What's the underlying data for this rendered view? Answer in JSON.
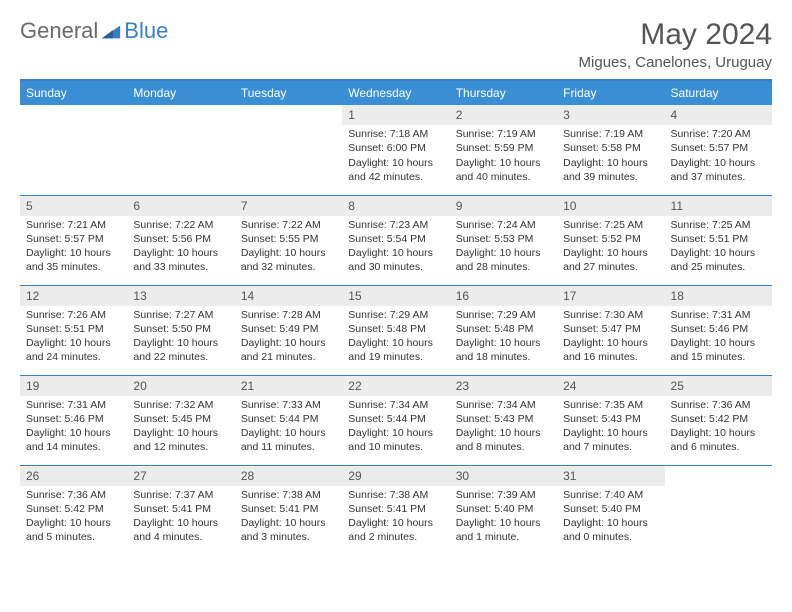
{
  "logo": {
    "text1": "General",
    "text2": "Blue"
  },
  "title": "May 2024",
  "location": "Migues, Canelones, Uruguay",
  "colors": {
    "accent": "#3a7fc4",
    "header_bg": "#3a8fd4",
    "header_fg": "#ffffff",
    "daynum_bg": "#ececec",
    "text": "#333333",
    "muted": "#555555"
  },
  "daysOfWeek": [
    "Sunday",
    "Monday",
    "Tuesday",
    "Wednesday",
    "Thursday",
    "Friday",
    "Saturday"
  ],
  "weeks": [
    [
      null,
      null,
      null,
      {
        "n": "1",
        "sr": "Sunrise: 7:18 AM",
        "ss": "Sunset: 6:00 PM",
        "dl": "Daylight: 10 hours and 42 minutes."
      },
      {
        "n": "2",
        "sr": "Sunrise: 7:19 AM",
        "ss": "Sunset: 5:59 PM",
        "dl": "Daylight: 10 hours and 40 minutes."
      },
      {
        "n": "3",
        "sr": "Sunrise: 7:19 AM",
        "ss": "Sunset: 5:58 PM",
        "dl": "Daylight: 10 hours and 39 minutes."
      },
      {
        "n": "4",
        "sr": "Sunrise: 7:20 AM",
        "ss": "Sunset: 5:57 PM",
        "dl": "Daylight: 10 hours and 37 minutes."
      }
    ],
    [
      {
        "n": "5",
        "sr": "Sunrise: 7:21 AM",
        "ss": "Sunset: 5:57 PM",
        "dl": "Daylight: 10 hours and 35 minutes."
      },
      {
        "n": "6",
        "sr": "Sunrise: 7:22 AM",
        "ss": "Sunset: 5:56 PM",
        "dl": "Daylight: 10 hours and 33 minutes."
      },
      {
        "n": "7",
        "sr": "Sunrise: 7:22 AM",
        "ss": "Sunset: 5:55 PM",
        "dl": "Daylight: 10 hours and 32 minutes."
      },
      {
        "n": "8",
        "sr": "Sunrise: 7:23 AM",
        "ss": "Sunset: 5:54 PM",
        "dl": "Daylight: 10 hours and 30 minutes."
      },
      {
        "n": "9",
        "sr": "Sunrise: 7:24 AM",
        "ss": "Sunset: 5:53 PM",
        "dl": "Daylight: 10 hours and 28 minutes."
      },
      {
        "n": "10",
        "sr": "Sunrise: 7:25 AM",
        "ss": "Sunset: 5:52 PM",
        "dl": "Daylight: 10 hours and 27 minutes."
      },
      {
        "n": "11",
        "sr": "Sunrise: 7:25 AM",
        "ss": "Sunset: 5:51 PM",
        "dl": "Daylight: 10 hours and 25 minutes."
      }
    ],
    [
      {
        "n": "12",
        "sr": "Sunrise: 7:26 AM",
        "ss": "Sunset: 5:51 PM",
        "dl": "Daylight: 10 hours and 24 minutes."
      },
      {
        "n": "13",
        "sr": "Sunrise: 7:27 AM",
        "ss": "Sunset: 5:50 PM",
        "dl": "Daylight: 10 hours and 22 minutes."
      },
      {
        "n": "14",
        "sr": "Sunrise: 7:28 AM",
        "ss": "Sunset: 5:49 PM",
        "dl": "Daylight: 10 hours and 21 minutes."
      },
      {
        "n": "15",
        "sr": "Sunrise: 7:29 AM",
        "ss": "Sunset: 5:48 PM",
        "dl": "Daylight: 10 hours and 19 minutes."
      },
      {
        "n": "16",
        "sr": "Sunrise: 7:29 AM",
        "ss": "Sunset: 5:48 PM",
        "dl": "Daylight: 10 hours and 18 minutes."
      },
      {
        "n": "17",
        "sr": "Sunrise: 7:30 AM",
        "ss": "Sunset: 5:47 PM",
        "dl": "Daylight: 10 hours and 16 minutes."
      },
      {
        "n": "18",
        "sr": "Sunrise: 7:31 AM",
        "ss": "Sunset: 5:46 PM",
        "dl": "Daylight: 10 hours and 15 minutes."
      }
    ],
    [
      {
        "n": "19",
        "sr": "Sunrise: 7:31 AM",
        "ss": "Sunset: 5:46 PM",
        "dl": "Daylight: 10 hours and 14 minutes."
      },
      {
        "n": "20",
        "sr": "Sunrise: 7:32 AM",
        "ss": "Sunset: 5:45 PM",
        "dl": "Daylight: 10 hours and 12 minutes."
      },
      {
        "n": "21",
        "sr": "Sunrise: 7:33 AM",
        "ss": "Sunset: 5:44 PM",
        "dl": "Daylight: 10 hours and 11 minutes."
      },
      {
        "n": "22",
        "sr": "Sunrise: 7:34 AM",
        "ss": "Sunset: 5:44 PM",
        "dl": "Daylight: 10 hours and 10 minutes."
      },
      {
        "n": "23",
        "sr": "Sunrise: 7:34 AM",
        "ss": "Sunset: 5:43 PM",
        "dl": "Daylight: 10 hours and 8 minutes."
      },
      {
        "n": "24",
        "sr": "Sunrise: 7:35 AM",
        "ss": "Sunset: 5:43 PM",
        "dl": "Daylight: 10 hours and 7 minutes."
      },
      {
        "n": "25",
        "sr": "Sunrise: 7:36 AM",
        "ss": "Sunset: 5:42 PM",
        "dl": "Daylight: 10 hours and 6 minutes."
      }
    ],
    [
      {
        "n": "26",
        "sr": "Sunrise: 7:36 AM",
        "ss": "Sunset: 5:42 PM",
        "dl": "Daylight: 10 hours and 5 minutes."
      },
      {
        "n": "27",
        "sr": "Sunrise: 7:37 AM",
        "ss": "Sunset: 5:41 PM",
        "dl": "Daylight: 10 hours and 4 minutes."
      },
      {
        "n": "28",
        "sr": "Sunrise: 7:38 AM",
        "ss": "Sunset: 5:41 PM",
        "dl": "Daylight: 10 hours and 3 minutes."
      },
      {
        "n": "29",
        "sr": "Sunrise: 7:38 AM",
        "ss": "Sunset: 5:41 PM",
        "dl": "Daylight: 10 hours and 2 minutes."
      },
      {
        "n": "30",
        "sr": "Sunrise: 7:39 AM",
        "ss": "Sunset: 5:40 PM",
        "dl": "Daylight: 10 hours and 1 minute."
      },
      {
        "n": "31",
        "sr": "Sunrise: 7:40 AM",
        "ss": "Sunset: 5:40 PM",
        "dl": "Daylight: 10 hours and 0 minutes."
      },
      null
    ]
  ]
}
